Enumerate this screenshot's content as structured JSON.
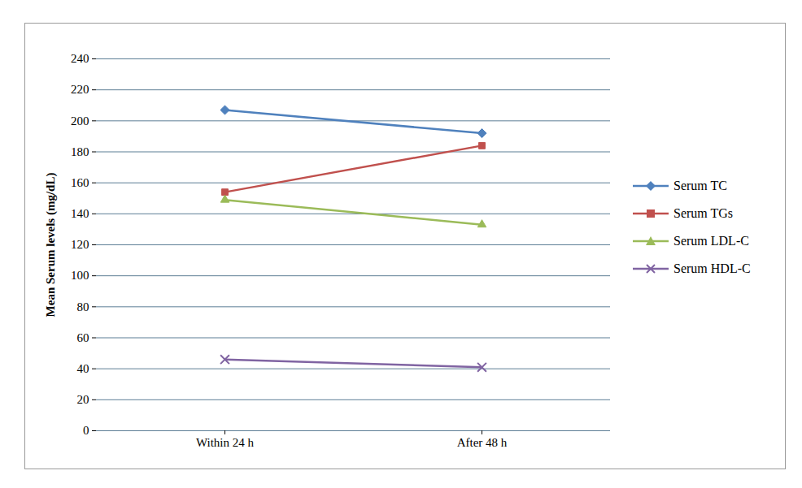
{
  "chart_data": {
    "type": "line",
    "y_label": "Mean Serum levels (mg/dL)",
    "categories": [
      "Within 24 h",
      "After 48 h"
    ],
    "series": [
      {
        "name": "Serum TC",
        "color": "#4f81bd",
        "marker": "diamond",
        "values": [
          207,
          192
        ]
      },
      {
        "name": "Serum TGs",
        "color": "#c0504d",
        "marker": "square",
        "values": [
          154,
          184
        ]
      },
      {
        "name": "Serum LDL-C",
        "color": "#9bbb59",
        "marker": "triangle",
        "values": [
          149,
          133
        ]
      },
      {
        "name": "Serum HDL-C",
        "color": "#8064a2",
        "marker": "x",
        "values": [
          46,
          41
        ]
      }
    ],
    "ylim": [
      0,
      240
    ],
    "yticks": [
      0,
      20,
      40,
      60,
      80,
      100,
      120,
      140,
      160,
      180,
      200,
      220,
      240
    ],
    "grid": true,
    "legend": "right"
  }
}
